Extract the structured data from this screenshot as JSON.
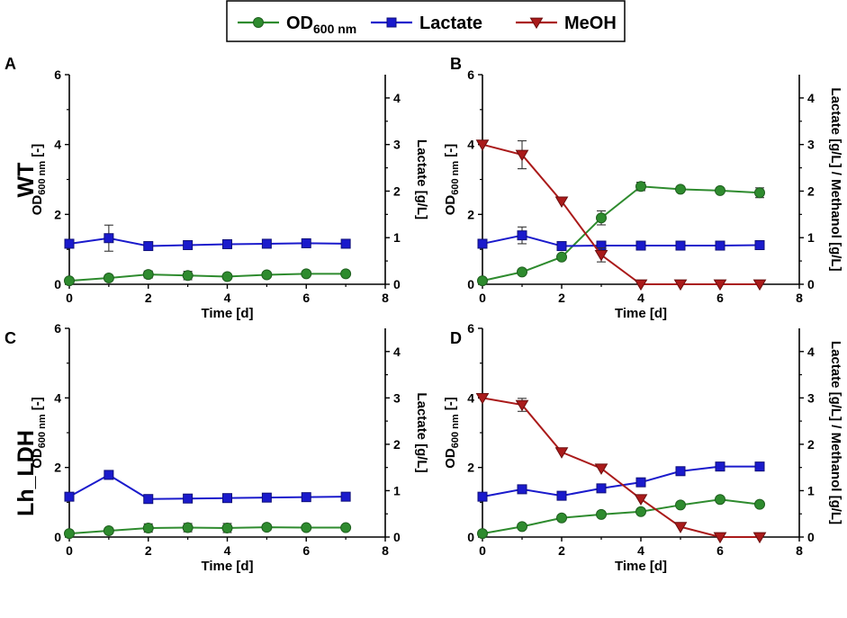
{
  "legend": {
    "items": [
      {
        "key": "od",
        "main": "OD",
        "sub": "600 nm",
        "color": "#2e8b2e",
        "marker": "circle"
      },
      {
        "key": "lac",
        "main": "Lactate",
        "sub": "",
        "color": "#1a1acc",
        "marker": "square"
      },
      {
        "key": "meoh",
        "main": "MeOH",
        "sub": "",
        "color": "#aa1a1a",
        "marker": "triangle-down"
      }
    ]
  },
  "row_labels": [
    "WT",
    "Lh_LDH"
  ],
  "colors": {
    "od": "#2e8b2e",
    "lactate": "#1a1acc",
    "meoh": "#aa1a1a",
    "axis": "#000000"
  },
  "chart_data": [
    {
      "type": "line",
      "panel": "A",
      "row": "WT",
      "xlabel": "Time [d]",
      "ylabel_main": "OD",
      "ylabel_sub": "600 nm",
      "ylabel_tail": " [-]",
      "y2label": "Lactate [g/L]",
      "xlim": [
        0,
        8
      ],
      "xticks": [
        0,
        2,
        4,
        6,
        8
      ],
      "ylim": [
        0,
        6
      ],
      "yticks": [
        0,
        2,
        4,
        6
      ],
      "y2lim": [
        0,
        4.5
      ],
      "y2ticks": [
        0,
        1,
        2,
        3,
        4
      ],
      "x": [
        0,
        1,
        2,
        3,
        4,
        5,
        6,
        7
      ],
      "series": [
        {
          "name": "OD600 nm",
          "axis": "left",
          "key": "od",
          "values": [
            0.1,
            0.18,
            0.28,
            0.25,
            0.22,
            0.27,
            0.3,
            0.3
          ],
          "errors": [
            0,
            0,
            0.1,
            0.12,
            0,
            0,
            0,
            0
          ]
        },
        {
          "name": "Lactate",
          "axis": "right",
          "key": "lac",
          "values": [
            0.87,
            0.99,
            0.82,
            0.84,
            0.86,
            0.87,
            0.88,
            0.87
          ],
          "errors": [
            0,
            0.28,
            0,
            0,
            0,
            0,
            0,
            0
          ]
        }
      ]
    },
    {
      "type": "line",
      "panel": "B",
      "row": "WT",
      "xlabel": "Time [d]",
      "ylabel_main": "OD",
      "ylabel_sub": "600 nm",
      "ylabel_tail": " [-]",
      "y2label": "Lactate [g/L] / Methanol [g/L]",
      "xlim": [
        0,
        8
      ],
      "xticks": [
        0,
        2,
        4,
        6,
        8
      ],
      "ylim": [
        0,
        6
      ],
      "yticks": [
        0,
        2,
        4,
        6
      ],
      "y2lim": [
        0,
        4.5
      ],
      "y2ticks": [
        0,
        1,
        2,
        3,
        4
      ],
      "x": [
        0,
        1,
        2,
        3,
        4,
        5,
        6,
        7
      ],
      "series": [
        {
          "name": "OD600 nm",
          "axis": "left",
          "key": "od",
          "values": [
            0.1,
            0.35,
            0.78,
            1.9,
            2.8,
            2.72,
            2.68,
            2.62
          ],
          "errors": [
            0,
            0,
            0,
            0.2,
            0.12,
            0,
            0,
            0.14
          ]
        },
        {
          "name": "Lactate",
          "axis": "right",
          "key": "lac",
          "values": [
            0.87,
            1.05,
            0.82,
            0.83,
            0.83,
            0.83,
            0.83,
            0.84
          ],
          "errors": [
            0,
            0.18,
            0,
            0,
            0,
            0,
            0,
            0
          ]
        },
        {
          "name": "MeOH",
          "axis": "right",
          "key": "meoh",
          "values": [
            3.0,
            2.78,
            1.78,
            0.63,
            0.0,
            0.0,
            0.0,
            0.0
          ],
          "errors": [
            0,
            0.3,
            0,
            0.15,
            0,
            0,
            0,
            0
          ]
        }
      ]
    },
    {
      "type": "line",
      "panel": "C",
      "row": "Lh_LDH",
      "xlabel": "Time [d]",
      "ylabel_main": "OD",
      "ylabel_sub": "600 nm",
      "ylabel_tail": " [-]",
      "y2label": "Lactate [g/L]",
      "xlim": [
        0,
        8
      ],
      "xticks": [
        0,
        2,
        4,
        6,
        8
      ],
      "ylim": [
        0,
        6
      ],
      "yticks": [
        0,
        2,
        4,
        6
      ],
      "y2lim": [
        0,
        4.5
      ],
      "y2ticks": [
        0,
        1,
        2,
        3,
        4
      ],
      "x": [
        0,
        1,
        2,
        3,
        4,
        5,
        6,
        7
      ],
      "series": [
        {
          "name": "OD600 nm",
          "axis": "left",
          "key": "od",
          "values": [
            0.1,
            0.18,
            0.26,
            0.27,
            0.26,
            0.28,
            0.27,
            0.27
          ],
          "errors": [
            0,
            0,
            0.12,
            0.12,
            0.13,
            0.08,
            0,
            0
          ]
        },
        {
          "name": "Lactate",
          "axis": "right",
          "key": "lac",
          "values": [
            0.87,
            1.34,
            0.82,
            0.83,
            0.84,
            0.85,
            0.86,
            0.87
          ],
          "errors": [
            0,
            0,
            0,
            0,
            0,
            0,
            0,
            0
          ]
        }
      ]
    },
    {
      "type": "line",
      "panel": "D",
      "row": "Lh_LDH",
      "xlabel": "Time [d]",
      "ylabel_main": "OD",
      "ylabel_sub": "600 nm",
      "ylabel_tail": " [-]",
      "y2label": "Lactate [g/L] / Methanol [g/L]",
      "xlim": [
        0,
        8
      ],
      "xticks": [
        0,
        2,
        4,
        6,
        8
      ],
      "ylim": [
        0,
        6
      ],
      "yticks": [
        0,
        2,
        4,
        6
      ],
      "y2lim": [
        0,
        4.5
      ],
      "y2ticks": [
        0,
        1,
        2,
        3,
        4
      ],
      "x": [
        0,
        1,
        2,
        3,
        4,
        5,
        6,
        7
      ],
      "series": [
        {
          "name": "OD600 nm",
          "axis": "left",
          "key": "od",
          "values": [
            0.1,
            0.3,
            0.55,
            0.65,
            0.73,
            0.92,
            1.08,
            0.94
          ],
          "errors": [
            0,
            0,
            0,
            0,
            0,
            0,
            0,
            0
          ]
        },
        {
          "name": "Lactate",
          "axis": "right",
          "key": "lac",
          "values": [
            0.87,
            1.03,
            0.89,
            1.05,
            1.18,
            1.42,
            1.52,
            1.52
          ],
          "errors": [
            0,
            0,
            0,
            0,
            0,
            0,
            0,
            0
          ]
        },
        {
          "name": "MeOH",
          "axis": "right",
          "key": "meoh",
          "values": [
            3.0,
            2.85,
            1.83,
            1.48,
            0.82,
            0.22,
            0.0,
            0.0
          ],
          "errors": [
            0,
            0.14,
            0,
            0,
            0,
            0,
            0,
            0
          ]
        }
      ]
    }
  ]
}
